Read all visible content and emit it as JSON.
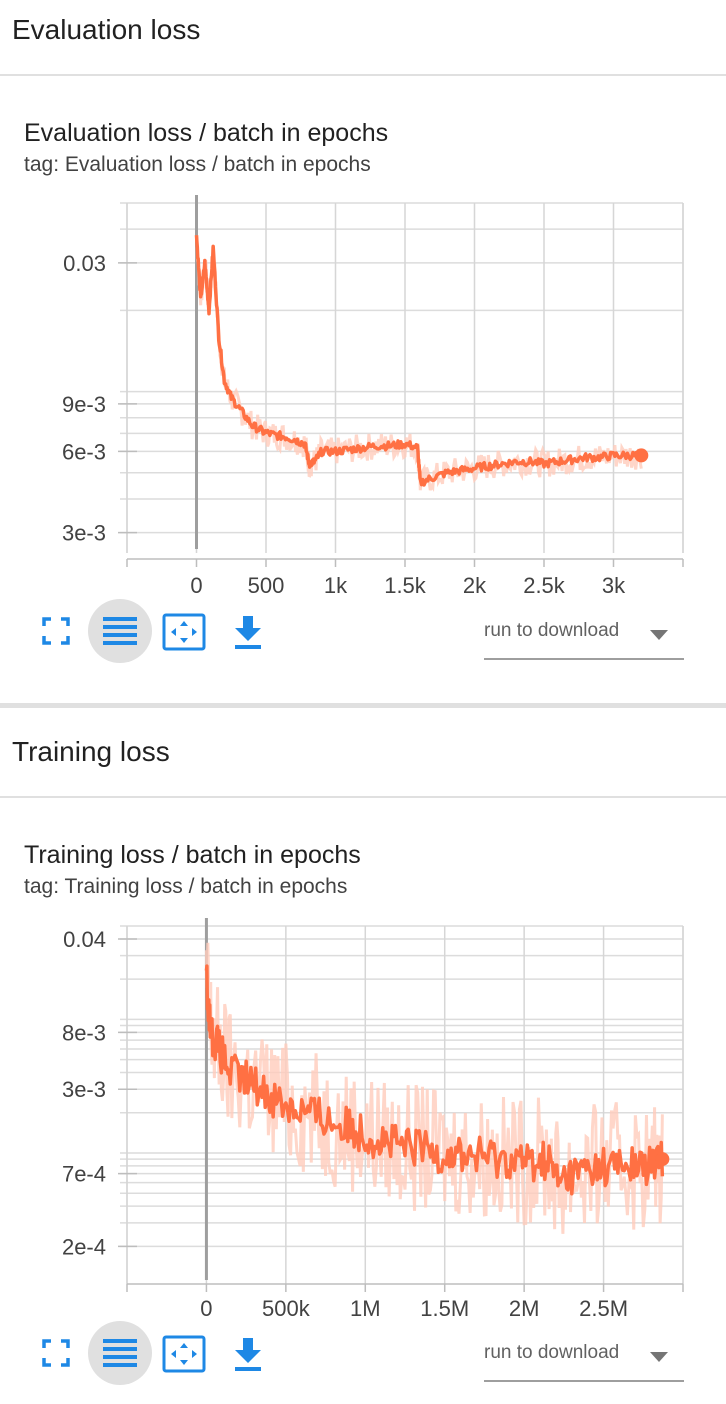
{
  "sections": [
    {
      "title": "Evaluation loss",
      "card_title": "Evaluation loss / batch in epochs",
      "tag": "tag: Evaluation loss / batch in epochs",
      "dropdown_label": "run to download"
    },
    {
      "title": "Training loss",
      "card_title": "Training loss / batch in epochs",
      "tag": "tag: Training loss / batch in epochs",
      "dropdown_label": "run to download"
    }
  ],
  "icons": [
    "fullscreen-icon",
    "toggle-log-scale-icon",
    "fit-domain-icon",
    "download-icon"
  ],
  "colors": {
    "series": "#ff7043",
    "series_raw": "#ffccbc",
    "accent": "#1e88e5"
  },
  "chart_data": [
    {
      "type": "line",
      "title": "Evaluation loss / batch in epochs",
      "yscale": "log",
      "xlim": [
        -500,
        3500
      ],
      "ylim": [
        0.0027,
        0.05
      ],
      "x_ticks": [
        {
          "v": 0,
          "label": "0"
        },
        {
          "v": 500,
          "label": "500"
        },
        {
          "v": 1000,
          "label": "1k"
        },
        {
          "v": 1500,
          "label": "1.5k"
        },
        {
          "v": 2000,
          "label": "2k"
        },
        {
          "v": 2500,
          "label": "2.5k"
        },
        {
          "v": 3000,
          "label": "3k"
        }
      ],
      "y_ticks": [
        {
          "v": 0.03,
          "label": "0.03"
        },
        {
          "v": 0.009,
          "label": "9e-3"
        },
        {
          "v": 0.006,
          "label": "6e-3"
        },
        {
          "v": 0.003,
          "label": "3e-3"
        }
      ],
      "series": [
        {
          "values": [
            [
              0,
              0.038
            ],
            [
              30,
              0.022
            ],
            [
              60,
              0.03
            ],
            [
              90,
              0.02
            ],
            [
              120,
              0.034
            ],
            [
              160,
              0.016
            ],
            [
              200,
              0.011
            ],
            [
              250,
              0.0095
            ],
            [
              320,
              0.0085
            ],
            [
              400,
              0.0075
            ],
            [
              480,
              0.0071
            ],
            [
              560,
              0.0069
            ],
            [
              640,
              0.0068
            ],
            [
              720,
              0.0066
            ],
            [
              780,
              0.0064
            ],
            [
              810,
              0.0054
            ],
            [
              850,
              0.0055
            ],
            [
              900,
              0.006
            ],
            [
              1000,
              0.006
            ],
            [
              1100,
              0.0061
            ],
            [
              1200,
              0.0062
            ],
            [
              1300,
              0.0063
            ],
            [
              1400,
              0.0063
            ],
            [
              1500,
              0.0064
            ],
            [
              1590,
              0.0062
            ],
            [
              1610,
              0.0046
            ],
            [
              1700,
              0.0048
            ],
            [
              1800,
              0.005
            ],
            [
              1900,
              0.0051
            ],
            [
              2000,
              0.0052
            ],
            [
              2100,
              0.0053
            ],
            [
              2200,
              0.0054
            ],
            [
              2300,
              0.0055
            ],
            [
              2400,
              0.0055
            ],
            [
              2500,
              0.0054
            ],
            [
              2600,
              0.0055
            ],
            [
              2700,
              0.0056
            ],
            [
              2800,
              0.0057
            ],
            [
              2900,
              0.0057
            ],
            [
              3000,
              0.0058
            ],
            [
              3100,
              0.0058
            ],
            [
              3200,
              0.0058
            ]
          ]
        }
      ]
    },
    {
      "type": "line",
      "title": "Training loss / batch in epochs",
      "yscale": "log",
      "xlim": [
        -500000,
        3000000
      ],
      "ylim": [
        0.00012,
        0.05
      ],
      "x_ticks": [
        {
          "v": 0,
          "label": "0"
        },
        {
          "v": 500000,
          "label": "500k"
        },
        {
          "v": 1000000,
          "label": "1M"
        },
        {
          "v": 1500000,
          "label": "1.5M"
        },
        {
          "v": 2000000,
          "label": "2M"
        },
        {
          "v": 2500000,
          "label": "2.5M"
        }
      ],
      "y_ticks": [
        {
          "v": 0.04,
          "label": "0.04"
        },
        {
          "v": 0.008,
          "label": "8e-3"
        },
        {
          "v": 0.003,
          "label": "3e-3"
        },
        {
          "v": 0.0007,
          "label": "7e-4"
        },
        {
          "v": 0.0002,
          "label": "2e-4"
        }
      ],
      "series": [
        {
          "values": [
            [
              0,
              0.02
            ],
            [
              30000,
              0.008
            ],
            [
              80000,
              0.006
            ],
            [
              150000,
              0.004
            ],
            [
              250000,
              0.0035
            ],
            [
              350000,
              0.003
            ],
            [
              450000,
              0.0025
            ],
            [
              550000,
              0.0022
            ],
            [
              650000,
              0.002
            ],
            [
              750000,
              0.0018
            ],
            [
              850000,
              0.0016
            ],
            [
              950000,
              0.0015
            ],
            [
              1050000,
              0.0013
            ],
            [
              1150000,
              0.0012
            ],
            [
              1250000,
              0.0011
            ],
            [
              1350000,
              0.0011
            ],
            [
              1450000,
              0.001
            ],
            [
              1550000,
              0.001
            ],
            [
              1650000,
              0.00095
            ],
            [
              1750000,
              0.00095
            ],
            [
              1850000,
              0.0009
            ],
            [
              1950000,
              0.0009
            ],
            [
              2050000,
              0.00085
            ],
            [
              2150000,
              0.0009
            ],
            [
              2220000,
              0.0006
            ],
            [
              2300000,
              0.0007
            ],
            [
              2400000,
              0.00075
            ],
            [
              2500000,
              0.0008
            ],
            [
              2600000,
              0.0008
            ],
            [
              2700000,
              0.0008
            ],
            [
              2800000,
              0.0008
            ],
            [
              2870000,
              0.0009
            ]
          ]
        }
      ]
    }
  ]
}
